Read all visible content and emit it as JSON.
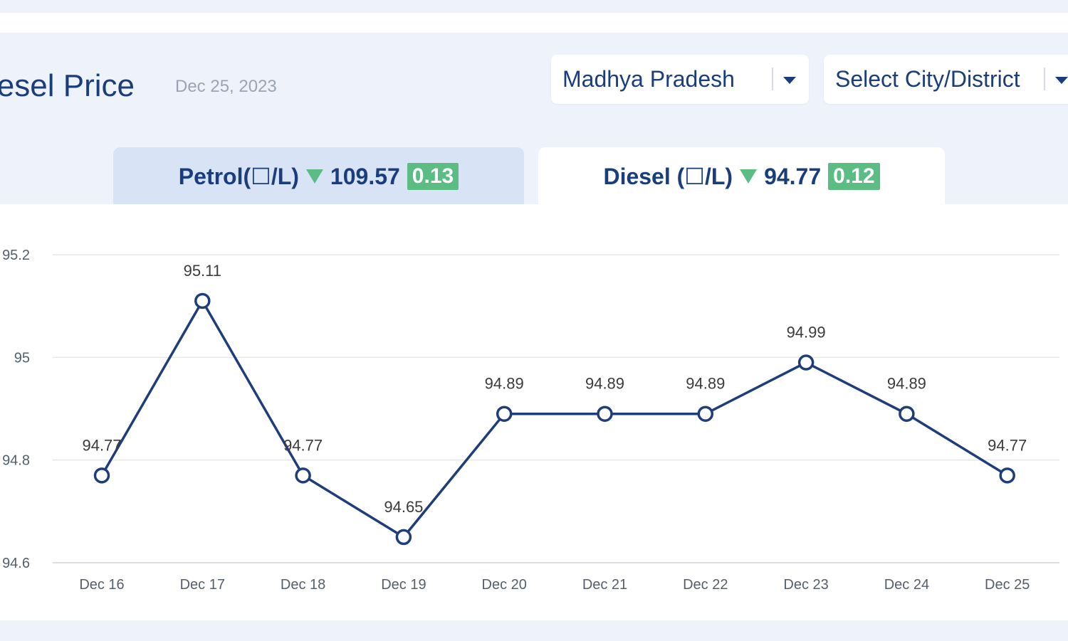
{
  "header": {
    "title": "iesel Price",
    "date": "Dec 25, 2023"
  },
  "filters": {
    "state": "Madhya Pradesh",
    "city": "Select City/District"
  },
  "tabs": [
    {
      "label": "Petrol(☐/L)",
      "price": "109.57",
      "change": "0.13",
      "trend": "down",
      "active": false
    },
    {
      "label": "Diesel (☐/L)",
      "price": "94.77",
      "change": "0.12",
      "trend": "down",
      "active": true
    }
  ],
  "colors": {
    "primary": "#1a3d7c",
    "line": "#1f3d7a",
    "positive_change": "#5bbd84",
    "gridline": "#e6e6e6",
    "background": "#eef2fb"
  },
  "chart_data": {
    "type": "line",
    "categories": [
      "Dec 16",
      "Dec 17",
      "Dec 18",
      "Dec 19",
      "Dec 20",
      "Dec 21",
      "Dec 22",
      "Dec 23",
      "Dec 24",
      "Dec 25"
    ],
    "series": [
      {
        "values": [
          94.77,
          95.11,
          94.77,
          94.65,
          94.89,
          94.89,
          94.89,
          94.99,
          94.89,
          94.77
        ]
      }
    ],
    "data_labels": [
      "94.77",
      "95.11",
      "94.77",
      "94.65",
      "94.89",
      "94.89",
      "94.89",
      "94.99",
      "94.89",
      "94.77"
    ],
    "y_ticks": [
      "95.2",
      "95",
      "94.8",
      "94.6"
    ],
    "y_tick_values": [
      95.2,
      95.0,
      94.8,
      94.6
    ],
    "ylim": [
      94.6,
      95.2
    ],
    "grid": true,
    "markers": "hollow-circle"
  }
}
